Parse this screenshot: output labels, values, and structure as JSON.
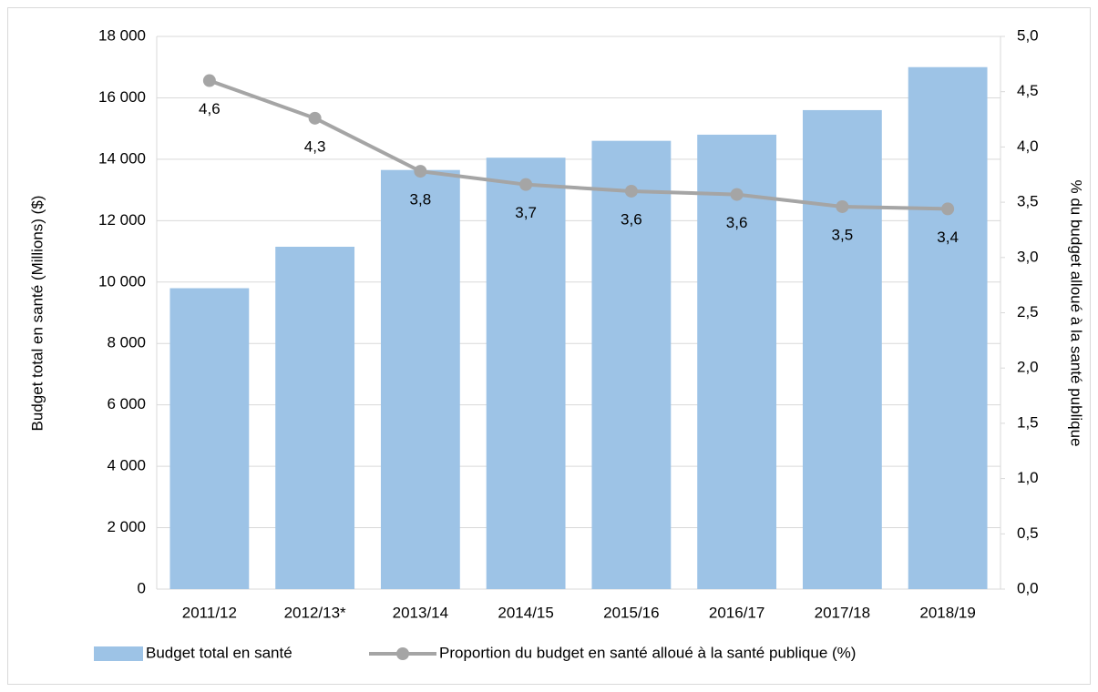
{
  "chart_data": {
    "type": "bar",
    "categories": [
      "2011/12",
      "2012/13*",
      "2013/14",
      "2014/15",
      "2015/16",
      "2016/17",
      "2017/18",
      "2018/19"
    ],
    "series": [
      {
        "name": "Budget total en santé",
        "type": "bar",
        "color": "#9dc3e6",
        "values": [
          9800,
          11150,
          13650,
          14050,
          14600,
          14800,
          15600,
          17000
        ]
      },
      {
        "name": "Proportion du budget en santé alloué à la santé publique (%)",
        "type": "line",
        "axis": "y2",
        "color": "#a5a5a5",
        "values": [
          4.6,
          4.26,
          3.78,
          3.66,
          3.6,
          3.57,
          3.46,
          3.44
        ],
        "value_labels": [
          "4,6",
          "4,3",
          "3,8",
          "3,7",
          "3,6",
          "3,6",
          "3,5",
          "3,4"
        ]
      }
    ],
    "ylabel": "Budget total en santé (Millions) ($)",
    "y2label": "% du budget alloué à la santé publique",
    "ylim": [
      0,
      18000
    ],
    "yticks": [
      0,
      {
        "value": 2000,
        "label": "2 000"
      },
      {
        "value": 4000,
        "label": "4 000"
      },
      {
        "value": 6000,
        "label": "6 000"
      },
      {
        "value": 8000,
        "label": "8 000"
      },
      {
        "value": 10000,
        "label": "10 000"
      },
      {
        "value": 12000,
        "label": "12 000"
      },
      {
        "value": 14000,
        "label": "14 000"
      },
      {
        "value": 16000,
        "label": "16 000"
      },
      {
        "value": 18000,
        "label": "18 000"
      }
    ],
    "y2lim": [
      0,
      5
    ],
    "y2ticks": [
      {
        "value": 0,
        "label": "0,0"
      },
      {
        "value": 0.5,
        "label": "0,5"
      },
      {
        "value": 1,
        "label": "1,0"
      },
      {
        "value": 1.5,
        "label": "1,5"
      },
      {
        "value": 2,
        "label": "2,0"
      },
      {
        "value": 2.5,
        "label": "2,5"
      },
      {
        "value": 3,
        "label": "3,0"
      },
      {
        "value": 3.5,
        "label": "3,5"
      },
      {
        "value": 4,
        "label": "4,0"
      },
      {
        "value": 4.5,
        "label": "4,5"
      },
      {
        "value": 5,
        "label": "5,0"
      }
    ],
    "grid": true,
    "legend": "bottom"
  }
}
